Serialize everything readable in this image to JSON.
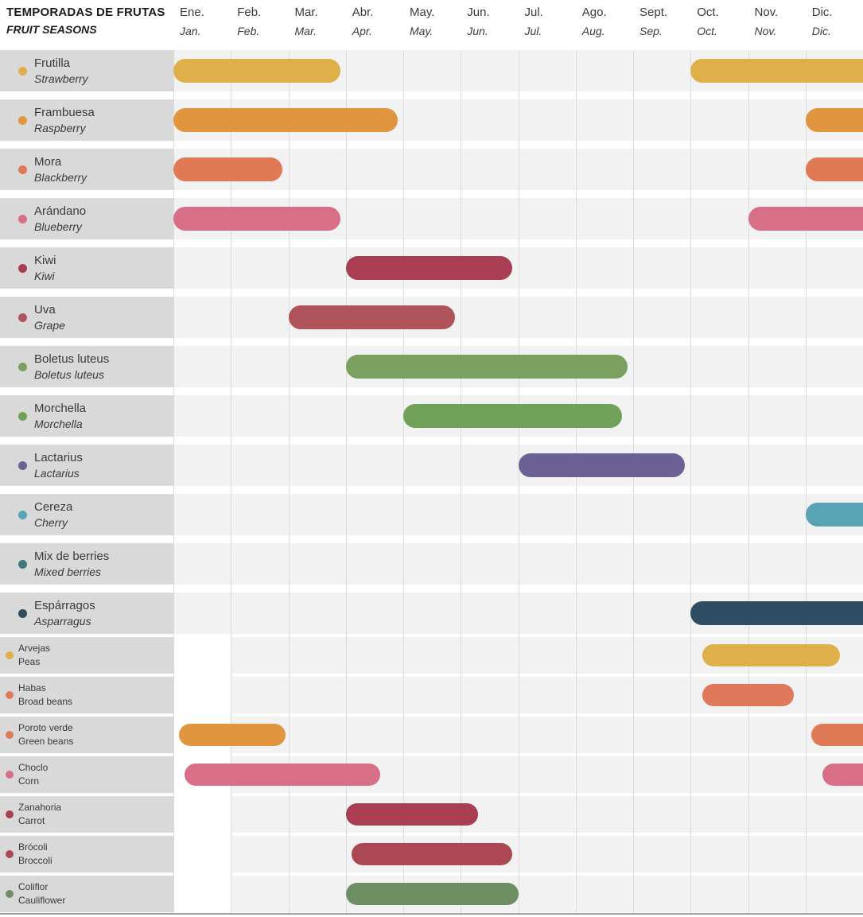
{
  "chart_data": {
    "type": "gantt",
    "title": "TEMPORADAS DE FRUTAS",
    "subtitle": "FRUIT SEASONS",
    "x_axis": {
      "unit": "month",
      "range": [
        0,
        12
      ],
      "gridlines": true
    },
    "months": [
      {
        "es": "Ene.",
        "en": "Jan."
      },
      {
        "es": "Feb.",
        "en": "Feb."
      },
      {
        "es": "Mar.",
        "en": "Mar."
      },
      {
        "es": "Abr.",
        "en": "Apr."
      },
      {
        "es": "May.",
        "en": "May."
      },
      {
        "es": "Jun.",
        "en": "Jun."
      },
      {
        "es": "Jul.",
        "en": "Jul."
      },
      {
        "es": "Ago.",
        "en": "Aug."
      },
      {
        "es": "Sept.",
        "en": "Sep."
      },
      {
        "es": "Oct.",
        "en": "Oct."
      },
      {
        "es": "Nov.",
        "en": "Nov."
      },
      {
        "es": "Dic.",
        "en": "Dic."
      }
    ],
    "sections": [
      {
        "name": "fruits",
        "rows": [
          {
            "es": "Frutilla",
            "en": "Strawberry",
            "color": "#dfb04a",
            "bars": [
              {
                "start": 0,
                "end": 2.9
              },
              {
                "start": 9,
                "end": 12
              }
            ]
          },
          {
            "es": "Frambuesa",
            "en": "Raspberry",
            "color": "#e2953f",
            "bars": [
              {
                "start": 0,
                "end": 3.9
              },
              {
                "start": 11,
                "end": 12
              }
            ]
          },
          {
            "es": "Mora",
            "en": "Blackberry",
            "color": "#e07a56",
            "bars": [
              {
                "start": 0,
                "end": 1.9
              },
              {
                "start": 11,
                "end": 12
              }
            ]
          },
          {
            "es": "Arándano",
            "en": "Blueberry",
            "color": "#d86e88",
            "bars": [
              {
                "start": 0,
                "end": 2.9
              },
              {
                "start": 10,
                "end": 12
              }
            ]
          },
          {
            "es": "Kiwi",
            "en": "Kiwi",
            "color": "#a93d52",
            "bars": [
              {
                "start": 3,
                "end": 5.9
              }
            ]
          },
          {
            "es": "Uva",
            "en": "Grape",
            "color": "#b0545b",
            "bars": [
              {
                "start": 2,
                "end": 4.9
              }
            ]
          },
          {
            "es": "Boletus luteus",
            "en": "Boletus luteus",
            "color": "#7ba160",
            "bars": [
              {
                "start": 3,
                "end": 7.9
              }
            ]
          },
          {
            "es": "Morchella",
            "en": "Morchella",
            "color": "#70a158",
            "bars": [
              {
                "start": 4,
                "end": 7.8
              }
            ]
          },
          {
            "es": "Lactarius",
            "en": "Lactarius",
            "color": "#6d6094",
            "bars": [
              {
                "start": 6,
                "end": 8.9
              }
            ]
          },
          {
            "es": "Cereza",
            "en": "Cherry",
            "color": "#58a4b4",
            "bars": [
              {
                "start": 11,
                "end": 12
              }
            ]
          },
          {
            "es": "Mix de berries",
            "en": "Mixed berries",
            "color": "#3f7a7e",
            "bars": []
          },
          {
            "es": "Espárragos",
            "en": "Asparragus",
            "color": "#2e4d62",
            "bars": [
              {
                "start": 9,
                "end": 12
              }
            ]
          }
        ]
      },
      {
        "name": "vegetables",
        "rows": [
          {
            "es": "Arvejas",
            "en": "Peas",
            "color": "#dfb04a",
            "bars": [
              {
                "start": 9.2,
                "end": 11.6
              }
            ]
          },
          {
            "es": "Habas",
            "en": "Broad beans",
            "color": "#e0795b",
            "bars": [
              {
                "start": 9.2,
                "end": 10.8
              }
            ]
          },
          {
            "es": "Poroto verde",
            "en": "Green beans",
            "color": "#e07a56",
            "bars": [
              {
                "start": 0.1,
                "end": 1.95,
                "color": "#e2953f"
              },
              {
                "start": 11.1,
                "end": 12
              }
            ]
          },
          {
            "es": "Choclo",
            "en": "Corn",
            "color": "#d86e88",
            "bars": [
              {
                "start": 0.2,
                "end": 3.6
              },
              {
                "start": 11.3,
                "end": 12
              }
            ]
          },
          {
            "es": "Zanahoria",
            "en": "Carrot",
            "color": "#a93d52",
            "bars": [
              {
                "start": 3,
                "end": 5.3
              }
            ]
          },
          {
            "es": "Brócoli",
            "en": "Broccoli",
            "color": "#ac4853",
            "bars": [
              {
                "start": 3.1,
                "end": 5.9
              }
            ]
          },
          {
            "es": "Coliflor",
            "en": "Cauliflower",
            "color": "#6e8f63",
            "bars": [
              {
                "start": 3,
                "end": 6
              }
            ]
          }
        ]
      }
    ]
  }
}
